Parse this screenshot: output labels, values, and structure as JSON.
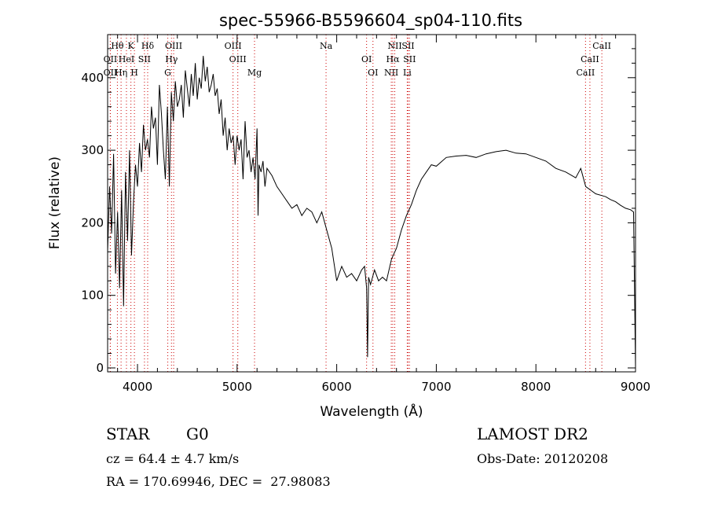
{
  "chart_data": {
    "type": "line",
    "title": "spec-55966-B5596604_sp04-110.fits",
    "xlabel": "Wavelength (Å)",
    "ylabel": "Flux (relative)",
    "xlim": [
      3700,
      9000
    ],
    "ylim": [
      0,
      460
    ],
    "xticks": [
      4000,
      5000,
      6000,
      7000,
      8000,
      9000
    ],
    "yticks": [
      0,
      100,
      200,
      300,
      400
    ],
    "grid": false,
    "series": [
      {
        "x": [
          3700,
          3720,
          3740,
          3760,
          3780,
          3800,
          3820,
          3840,
          3860,
          3880,
          3900,
          3920,
          3940,
          3960,
          3980,
          4000,
          4020,
          4040,
          4060,
          4080,
          4100,
          4120,
          4140,
          4160,
          4180,
          4200,
          4220,
          4240,
          4260,
          4280,
          4300,
          4320,
          4340,
          4360,
          4380,
          4400,
          4420,
          4440,
          4460,
          4480,
          4500,
          4520,
          4540,
          4560,
          4580,
          4600,
          4620,
          4640,
          4660,
          4680,
          4700,
          4720,
          4740,
          4760,
          4780,
          4800,
          4820,
          4840,
          4860,
          4880,
          4900,
          4920,
          4940,
          4960,
          4980,
          5000,
          5020,
          5040,
          5060,
          5080,
          5100,
          5120,
          5140,
          5160,
          5180,
          5200,
          5210,
          5220,
          5240,
          5260,
          5280,
          5300,
          5350,
          5400,
          5450,
          5500,
          5550,
          5600,
          5650,
          5700,
          5750,
          5800,
          5850,
          5900,
          5950,
          6000,
          6050,
          6100,
          6150,
          6200,
          6250,
          6280,
          6300,
          6310,
          6320,
          6340,
          6380,
          6420,
          6460,
          6500,
          6550,
          6600,
          6650,
          6700,
          6750,
          6800,
          6850,
          6900,
          6950,
          7000,
          7100,
          7200,
          7300,
          7400,
          7500,
          7600,
          7700,
          7800,
          7900,
          8000,
          8100,
          8200,
          8300,
          8400,
          8450,
          8500,
          8550,
          8600,
          8650,
          8700,
          8750,
          8800,
          8850,
          8900,
          8950,
          8980,
          9000
        ],
        "values": [
          160,
          250,
          185,
          295,
          130,
          215,
          110,
          245,
          85,
          270,
          175,
          300,
          155,
          230,
          280,
          250,
          310,
          270,
          335,
          300,
          315,
          290,
          360,
          330,
          345,
          280,
          390,
          350,
          300,
          260,
          360,
          250,
          380,
          340,
          395,
          360,
          370,
          390,
          345,
          410,
          385,
          360,
          405,
          375,
          420,
          370,
          400,
          385,
          430,
          395,
          415,
          380,
          390,
          405,
          375,
          385,
          350,
          370,
          320,
          345,
          300,
          330,
          310,
          320,
          280,
          320,
          300,
          315,
          260,
          340,
          290,
          300,
          270,
          290,
          260,
          330,
          210,
          280,
          270,
          285,
          250,
          275,
          265,
          250,
          240,
          230,
          220,
          225,
          210,
          220,
          215,
          200,
          215,
          190,
          165,
          120,
          140,
          125,
          130,
          120,
          135,
          140,
          110,
          15,
          125,
          115,
          135,
          120,
          125,
          120,
          150,
          165,
          190,
          210,
          225,
          245,
          260,
          270,
          280,
          278,
          290,
          292,
          293,
          290,
          295,
          298,
          300,
          296,
          295,
          290,
          285,
          275,
          270,
          262,
          275,
          250,
          245,
          240,
          238,
          236,
          232,
          229,
          224,
          220,
          218,
          215,
          0
        ]
      }
    ],
    "line_markers": [
      {
        "name": "Hθ",
        "wave": 3798
      },
      {
        "name": "OII",
        "wave": 3727
      },
      {
        "name": "OII",
        "wave": 3727
      },
      {
        "name": "K",
        "wave": 3934
      },
      {
        "name": "HeI",
        "wave": 3889
      },
      {
        "name": "Hη",
        "wave": 3835
      },
      {
        "name": "Hδ",
        "wave": 4102
      },
      {
        "name": "SII",
        "wave": 4070
      },
      {
        "name": "H",
        "wave": 3969
      },
      {
        "name": "OIII",
        "wave": 4363
      },
      {
        "name": "Hγ",
        "wave": 4341
      },
      {
        "name": "G",
        "wave": 4304
      },
      {
        "name": "OIII",
        "wave": 4959
      },
      {
        "name": "OIII",
        "wave": 5007
      },
      {
        "name": "Mg",
        "wave": 5175
      },
      {
        "name": "Na",
        "wave": 5893
      },
      {
        "name": "OI",
        "wave": 6300
      },
      {
        "name": "OI",
        "wave": 6364
      },
      {
        "name": "NII",
        "wave": 6583
      },
      {
        "name": "Hα",
        "wave": 6563
      },
      {
        "name": "NII",
        "wave": 6548
      },
      {
        "name": "SII",
        "wave": 6717
      },
      {
        "name": "SII",
        "wave": 6731
      },
      {
        "name": "Li",
        "wave": 6708
      },
      {
        "name": "CaII",
        "wave": 8662
      },
      {
        "name": "CaII",
        "wave": 8542
      },
      {
        "name": "CaII",
        "wave": 8498
      }
    ]
  },
  "info": {
    "class": "STAR",
    "subclass": "G0",
    "survey": "LAMOST DR2",
    "cz": "cz = 64.4 ± 4.7 km/s",
    "obsdate": "Obs-Date: 20120208",
    "radec": "RA = 170.69946, DEC =  27.98083"
  }
}
